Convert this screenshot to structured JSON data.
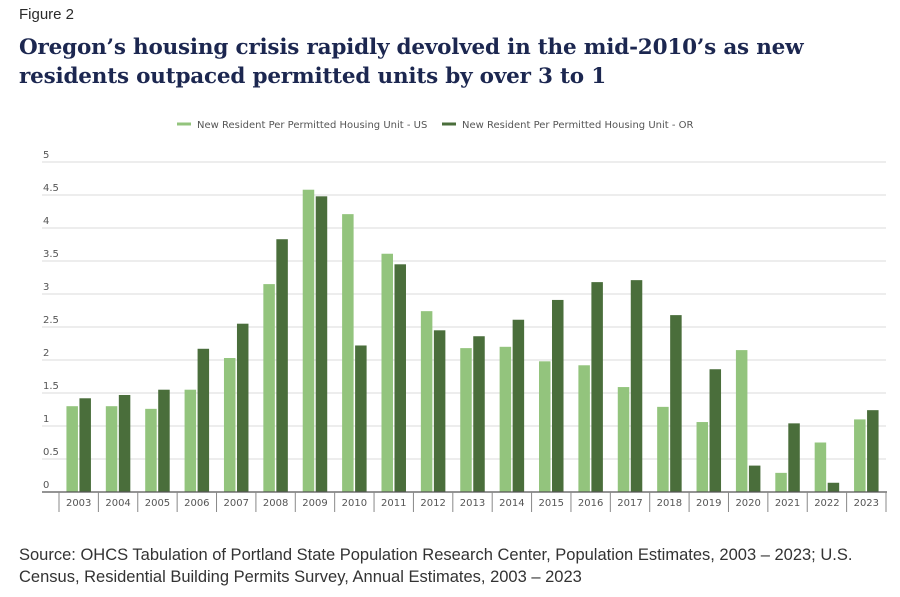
{
  "figure_label": "Figure 2",
  "title": "Oregon’s housing crisis rapidly devolved in the mid-2010’s as new residents outpaced permitted units by over 3 to 1",
  "source": "Source: OHCS Tabulation of Portland State Population Research Center, Population Estimates, 2003 – 2023; U.S. Census, Residential Building Permits Survey, Annual Estimates, 2003 – 2023",
  "chart_data": {
    "type": "bar",
    "title": "",
    "xlabel": "",
    "ylabel": "",
    "ylim": [
      0,
      5
    ],
    "yticks": [
      0,
      0.5,
      1,
      1.5,
      2,
      2.5,
      3,
      3.5,
      4,
      4.5,
      5
    ],
    "ytick_labels": [
      "0",
      "0.5",
      "1",
      "1.5",
      "2",
      "2.5",
      "3",
      "3.5",
      "4",
      "4.5",
      "5"
    ],
    "grid": true,
    "legend_position": "top-center",
    "categories": [
      "2003",
      "2004",
      "2005",
      "2006",
      "2007",
      "2008",
      "2009",
      "2010",
      "2011",
      "2012",
      "2013",
      "2014",
      "2015",
      "2016",
      "2017",
      "2018",
      "2019",
      "2020",
      "2021",
      "2022",
      "2023"
    ],
    "series": [
      {
        "name": "New Resident Per Permitted Housing Unit - US",
        "color": "#93c47d",
        "values": [
          1.3,
          1.3,
          1.26,
          1.55,
          2.03,
          3.15,
          4.58,
          4.21,
          3.61,
          2.74,
          2.18,
          2.2,
          1.98,
          1.92,
          1.59,
          1.29,
          1.06,
          2.15,
          0.29,
          0.75,
          1.1
        ]
      },
      {
        "name": "New Resident Per Permitted Housing Unit - OR",
        "color": "#4a6e3b",
        "values": [
          1.42,
          1.47,
          1.55,
          2.17,
          2.55,
          3.83,
          4.48,
          2.22,
          3.45,
          2.45,
          2.36,
          2.61,
          2.91,
          3.18,
          3.21,
          2.68,
          1.86,
          0.4,
          1.04,
          0.14,
          1.24
        ]
      }
    ]
  }
}
